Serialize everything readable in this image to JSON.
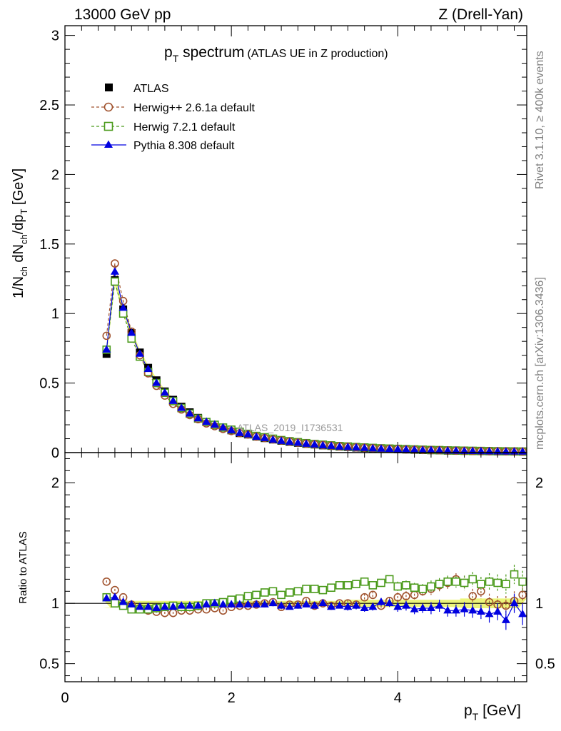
{
  "header": {
    "energy_label": "13000 GeV pp",
    "process_label": "Z (Drell-Yan)"
  },
  "side_labels": {
    "rivet": "Rivet 3.1.10, ≥ 400k events",
    "mcplots": "mcplots.cern.ch [arXiv:1306.3436]"
  },
  "colors": {
    "atlas": "#000000",
    "herwigpp": "#a0522d",
    "herwig7": "#4a9a1a",
    "pythia": "#0000e0",
    "band": "#ecf57a"
  },
  "chart_data": [
    {
      "type": "scatter",
      "title_main": "p",
      "title_sub": "T",
      "title_rest": " spectrum",
      "title_note": "(ATLAS UE in Z production)",
      "watermark": "ATLAS_2019_I1736531",
      "xlabel": "p",
      "xlabel_sub": "T",
      "xlabel_unit": " [GeV]",
      "ylabel_parts": [
        "1/N",
        "ch",
        " dN",
        "ch",
        "/dp",
        "T",
        " [GeV]"
      ],
      "xlim": [
        0,
        5.55
      ],
      "ylim": [
        0,
        3.07
      ],
      "yticks": [
        "0",
        "0.5",
        "1",
        "1.5",
        "2",
        "2.5",
        "3"
      ],
      "xticks": [
        "0",
        "2",
        "4"
      ],
      "legend": [
        {
          "name": "ATLAS",
          "marker": "square-filled"
        },
        {
          "name": "Herwig++ 2.6.1a default",
          "marker": "circle-open"
        },
        {
          "name": "Herwig 7.2.1 default",
          "marker": "square-open"
        },
        {
          "name": "Pythia 8.308 default",
          "marker": "triangle-filled"
        }
      ],
      "x": [
        0.5,
        0.6,
        0.7,
        0.8,
        0.9,
        1.0,
        1.1,
        1.2,
        1.3,
        1.4,
        1.5,
        1.6,
        1.7,
        1.8,
        1.9,
        2.0,
        2.1,
        2.2,
        2.3,
        2.4,
        2.5,
        2.6,
        2.7,
        2.8,
        2.9,
        3.0,
        3.1,
        3.2,
        3.3,
        3.4,
        3.5,
        3.6,
        3.7,
        3.8,
        3.9,
        4.0,
        4.1,
        4.2,
        4.3,
        4.4,
        4.5,
        4.6,
        4.7,
        4.8,
        4.9,
        5.0,
        5.1,
        5.2,
        5.3,
        5.4,
        5.5
      ],
      "series": [
        {
          "name": "ATLAS",
          "values": [
            0.71,
            1.24,
            1.03,
            0.86,
            0.72,
            0.61,
            0.52,
            0.44,
            0.38,
            0.33,
            0.29,
            0.25,
            0.22,
            0.2,
            0.18,
            0.16,
            0.14,
            0.13,
            0.115,
            0.104,
            0.094,
            0.085,
            0.077,
            0.07,
            0.063,
            0.058,
            0.052,
            0.048,
            0.043,
            0.04,
            0.036,
            0.033,
            0.03,
            0.028,
            0.026,
            0.024,
            0.022,
            0.02,
            0.018,
            0.017,
            0.016,
            0.014,
            0.013,
            0.012,
            0.011,
            0.01,
            0.0096,
            0.0088,
            0.0081,
            0.0075,
            0.007
          ]
        },
        {
          "name": "Herwig++ 2.6.1a default",
          "values": [
            0.84,
            1.36,
            1.09,
            0.87,
            0.7,
            0.57,
            0.48,
            0.41,
            0.35,
            0.31,
            0.27,
            0.24,
            0.21,
            0.19,
            0.17,
            0.155,
            0.14,
            0.13,
            0.115,
            0.105,
            0.095,
            0.087,
            0.079,
            0.072,
            0.065,
            0.06,
            0.054,
            0.05,
            0.045,
            0.042,
            0.038,
            0.035,
            0.032,
            0.029,
            0.027,
            0.025,
            0.023,
            0.021,
            0.019,
            0.018,
            0.017,
            0.015,
            0.014,
            0.013,
            0.012,
            0.011,
            0.01,
            0.0094,
            0.0087,
            0.008,
            0.0075
          ]
        },
        {
          "name": "Herwig 7.2.1 default",
          "values": [
            0.74,
            1.23,
            1.0,
            0.82,
            0.69,
            0.58,
            0.5,
            0.43,
            0.37,
            0.32,
            0.28,
            0.245,
            0.22,
            0.2,
            0.18,
            0.165,
            0.15,
            0.135,
            0.12,
            0.11,
            0.1,
            0.09,
            0.082,
            0.075,
            0.068,
            0.062,
            0.057,
            0.052,
            0.047,
            0.044,
            0.04,
            0.037,
            0.034,
            0.031,
            0.029,
            0.027,
            0.025,
            0.023,
            0.021,
            0.019,
            0.018,
            0.016,
            0.015,
            0.014,
            0.013,
            0.012,
            0.011,
            0.01,
            0.0093,
            0.0087,
            0.008
          ]
        },
        {
          "name": "Pythia 8.308 default",
          "values": [
            0.74,
            1.3,
            1.04,
            0.86,
            0.71,
            0.6,
            0.5,
            0.43,
            0.37,
            0.32,
            0.28,
            0.245,
            0.22,
            0.2,
            0.18,
            0.16,
            0.14,
            0.13,
            0.113,
            0.103,
            0.092,
            0.083,
            0.076,
            0.069,
            0.062,
            0.057,
            0.051,
            0.047,
            0.042,
            0.039,
            0.035,
            0.032,
            0.029,
            0.027,
            0.025,
            0.023,
            0.021,
            0.019,
            0.017,
            0.016,
            0.015,
            0.013,
            0.012,
            0.011,
            0.01,
            0.0092,
            0.0085,
            0.008,
            0.0072,
            0.0068,
            0.0063
          ]
        }
      ]
    },
    {
      "type": "scatter",
      "ylabel": "Ratio to ATLAS",
      "xlim": [
        0,
        5.55
      ],
      "ylim": [
        0.35,
        2.25
      ],
      "yticks": [
        "0.5",
        "1",
        "2"
      ],
      "x": [
        0.5,
        0.6,
        0.7,
        0.8,
        0.9,
        1.0,
        1.1,
        1.2,
        1.3,
        1.4,
        1.5,
        1.6,
        1.7,
        1.8,
        1.9,
        2.0,
        2.1,
        2.2,
        2.3,
        2.4,
        2.5,
        2.6,
        2.7,
        2.8,
        2.9,
        3.0,
        3.1,
        3.2,
        3.3,
        3.4,
        3.5,
        3.6,
        3.7,
        3.8,
        3.9,
        4.0,
        4.1,
        4.2,
        4.3,
        4.4,
        4.5,
        4.6,
        4.7,
        4.8,
        4.9,
        5.0,
        5.1,
        5.2,
        5.3,
        5.4,
        5.5
      ],
      "band_halfwidth": [
        0.04,
        0.03,
        0.03,
        0.02,
        0.02,
        0.02,
        0.02,
        0.02,
        0.02,
        0.02,
        0.02,
        0.02,
        0.02,
        0.02,
        0.02,
        0.02,
        0.02,
        0.02,
        0.02,
        0.02,
        0.02,
        0.02,
        0.02,
        0.02,
        0.02,
        0.02,
        0.02,
        0.02,
        0.02,
        0.03,
        0.03,
        0.03,
        0.03,
        0.03,
        0.03,
        0.03,
        0.03,
        0.03,
        0.03,
        0.03,
        0.03,
        0.03,
        0.03,
        0.04,
        0.04,
        0.04,
        0.04,
        0.04,
        0.04,
        0.04,
        0.04
      ],
      "series": [
        {
          "name": "Herwig++ 2.6.1a default",
          "values": [
            1.18,
            1.11,
            1.05,
            0.99,
            0.96,
            0.94,
            0.93,
            0.92,
            0.92,
            0.94,
            0.94,
            0.95,
            0.95,
            0.96,
            0.94,
            0.97,
            0.98,
            0.98,
            0.99,
            1.0,
            1.01,
            0.97,
            0.99,
            0.99,
            1.02,
            0.98,
            1.0,
            0.98,
            1.0,
            1.0,
            0.99,
            1.05,
            1.07,
            0.98,
            1.02,
            1.05,
            1.06,
            1.07,
            1.1,
            1.12,
            1.15,
            1.17,
            1.2,
            1.17,
            1.06,
            1.1,
            1.01,
            0.99,
            0.98,
            1.02,
            1.07
          ],
          "errors": [
            0.01,
            0.01,
            0.01,
            0.01,
            0.01,
            0.01,
            0.01,
            0.01,
            0.01,
            0.01,
            0.01,
            0.01,
            0.01,
            0.01,
            0.01,
            0.01,
            0.01,
            0.01,
            0.01,
            0.01,
            0.02,
            0.02,
            0.02,
            0.02,
            0.02,
            0.02,
            0.02,
            0.02,
            0.02,
            0.03,
            0.03,
            0.03,
            0.03,
            0.03,
            0.03,
            0.04,
            0.04,
            0.04,
            0.04,
            0.05,
            0.05,
            0.05,
            0.05,
            0.06,
            0.06,
            0.06,
            0.07,
            0.07,
            0.08,
            0.08,
            0.09
          ]
        },
        {
          "name": "Herwig 7.2.1 default",
          "values": [
            1.05,
            1.0,
            0.98,
            0.95,
            0.95,
            0.95,
            0.96,
            0.97,
            0.98,
            0.97,
            0.97,
            0.98,
            1.0,
            1.0,
            1.01,
            1.03,
            1.04,
            1.06,
            1.07,
            1.09,
            1.1,
            1.07,
            1.09,
            1.1,
            1.12,
            1.12,
            1.11,
            1.13,
            1.15,
            1.15,
            1.16,
            1.18,
            1.15,
            1.17,
            1.2,
            1.14,
            1.15,
            1.13,
            1.12,
            1.14,
            1.16,
            1.18,
            1.18,
            1.17,
            1.2,
            1.16,
            1.18,
            1.17,
            1.16,
            1.24,
            1.18
          ],
          "errors": [
            0.01,
            0.01,
            0.01,
            0.01,
            0.01,
            0.01,
            0.01,
            0.01,
            0.01,
            0.01,
            0.01,
            0.01,
            0.01,
            0.01,
            0.01,
            0.01,
            0.01,
            0.01,
            0.01,
            0.01,
            0.02,
            0.02,
            0.02,
            0.02,
            0.02,
            0.02,
            0.02,
            0.02,
            0.02,
            0.03,
            0.03,
            0.03,
            0.03,
            0.03,
            0.03,
            0.04,
            0.04,
            0.04,
            0.04,
            0.05,
            0.05,
            0.05,
            0.05,
            0.06,
            0.06,
            0.06,
            0.07,
            0.07,
            0.08,
            0.08,
            0.09
          ]
        },
        {
          "name": "Pythia 8.308 default",
          "values": [
            1.04,
            1.05,
            1.01,
            0.99,
            0.97,
            0.97,
            0.96,
            0.97,
            0.97,
            0.98,
            0.98,
            0.98,
            0.99,
            1.0,
            0.99,
            0.99,
            0.99,
            0.99,
            0.99,
            0.99,
            1.0,
            0.98,
            0.97,
            0.98,
            0.99,
            0.98,
            1.0,
            0.97,
            0.98,
            0.97,
            0.98,
            0.96,
            0.97,
            1.01,
            1.0,
            0.97,
            0.98,
            0.95,
            0.96,
            0.96,
            0.98,
            0.94,
            0.94,
            0.95,
            0.94,
            0.93,
            0.91,
            0.93,
            0.86,
            1.0,
            0.91
          ],
          "errors": [
            0.01,
            0.01,
            0.01,
            0.01,
            0.01,
            0.01,
            0.01,
            0.01,
            0.01,
            0.01,
            0.01,
            0.01,
            0.01,
            0.01,
            0.01,
            0.01,
            0.01,
            0.01,
            0.01,
            0.01,
            0.02,
            0.02,
            0.02,
            0.02,
            0.02,
            0.02,
            0.02,
            0.02,
            0.02,
            0.03,
            0.03,
            0.03,
            0.03,
            0.03,
            0.03,
            0.04,
            0.04,
            0.04,
            0.04,
            0.05,
            0.05,
            0.05,
            0.05,
            0.06,
            0.06,
            0.06,
            0.07,
            0.07,
            0.08,
            0.08,
            0.09
          ]
        }
      ]
    }
  ]
}
